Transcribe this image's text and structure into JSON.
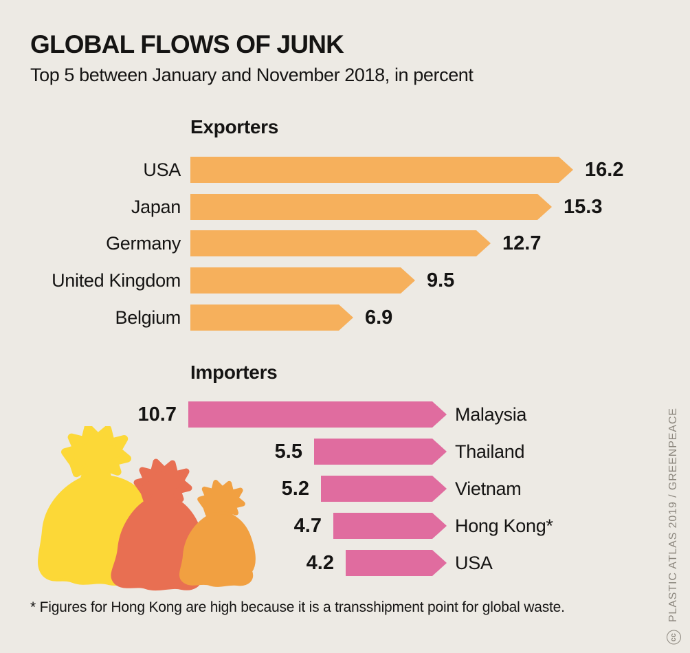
{
  "title": "GLOBAL FLOWS OF JUNK",
  "subtitle": "Top 5 between January and November 2018, in percent",
  "footnote": "* Figures for Hong Kong are high because it is a transshipment point for global waste.",
  "credit": {
    "cc_label": "cc",
    "text": "PLASTIC ATLAS 2019 / GREENPEACE"
  },
  "colors": {
    "background": "#EDEAE4",
    "exporter_bar": "#F6B05C",
    "importer_bar": "#E06C9F",
    "text": "#151413",
    "credit_text": "#8C877E",
    "bag_yellow": "#FCD837",
    "bag_red": "#E86F52",
    "bag_orange": "#F1A041"
  },
  "chart_data": [
    {
      "type": "bar",
      "title": "Exporters",
      "orientation": "horizontal",
      "unit": "percent",
      "bar_color": "#F6B05C",
      "bar_shape": "right-arrow",
      "label_position": "left",
      "value_position": "right-of-bar",
      "categories": [
        "USA",
        "Japan",
        "Germany",
        "United Kingdom",
        "Belgium"
      ],
      "values": [
        16.2,
        15.3,
        12.7,
        9.5,
        6.9
      ]
    },
    {
      "type": "bar",
      "title": "Importers",
      "orientation": "horizontal",
      "unit": "percent",
      "bar_color": "#E06C9F",
      "bar_shape": "right-arrow",
      "label_position": "right",
      "value_position": "left-of-bar",
      "bars_right_aligned": true,
      "categories": [
        "Malaysia",
        "Thailand",
        "Vietnam",
        "Hong Kong*",
        "USA"
      ],
      "values": [
        10.7,
        5.5,
        5.2,
        4.7,
        4.2
      ]
    }
  ],
  "illustration": {
    "name": "garbage-bags",
    "bags": [
      "yellow",
      "red",
      "orange"
    ]
  }
}
